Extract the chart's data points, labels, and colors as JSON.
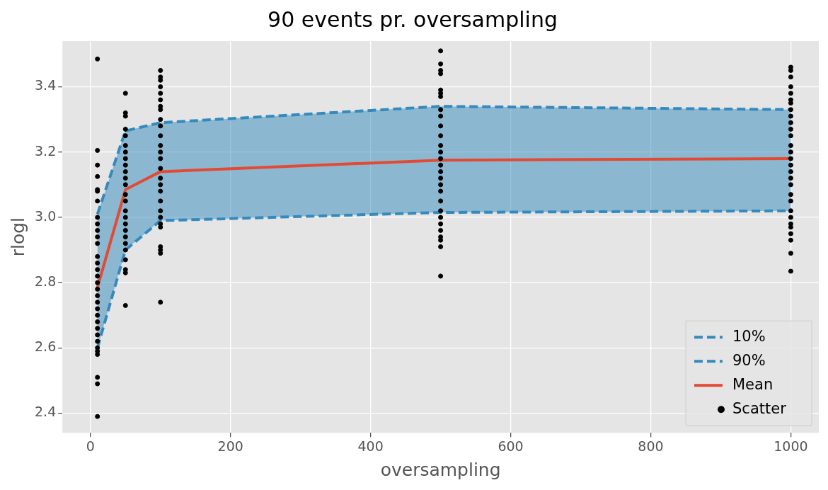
{
  "chart_data": {
    "type": "line",
    "title": "90 events pr. oversampling",
    "xlabel": "oversampling",
    "ylabel": "rlogl",
    "x": [
      10,
      50,
      100,
      500,
      1000
    ],
    "xlim": [
      -40,
      1040
    ],
    "xticks": [
      0,
      200,
      400,
      600,
      800,
      1000
    ],
    "ylim": [
      2.34,
      3.54
    ],
    "yticks": [
      2.4,
      2.6,
      2.8,
      {
        "value": 3,
        "label": "3.0"
      },
      3.2,
      3.4
    ],
    "grid": true,
    "legend": "bottom right",
    "series": [
      {
        "name": "10%",
        "color": "#348abd",
        "line_style": "dashed",
        "marker": "none",
        "values": [
          2.6,
          2.9,
          2.99,
          3.015,
          3.02
        ]
      },
      {
        "name": "90%",
        "color": "#348abd",
        "line_style": "dashed",
        "marker": "none",
        "values": [
          3.01,
          3.265,
          3.29,
          3.34,
          3.33
        ]
      },
      {
        "name": "Mean",
        "color": "#e24a33",
        "line_style": "solid",
        "marker": "none",
        "values": [
          2.785,
          3.085,
          3.14,
          3.175,
          3.18
        ],
        "lower": [
          2.6,
          2.9,
          2.99,
          3.015,
          3.02
        ],
        "upper": [
          3.01,
          3.265,
          3.29,
          3.34,
          3.33
        ]
      },
      {
        "name": "Scatter",
        "type": "scatter",
        "color": "#000000",
        "marker": "circle",
        "x": [
          10,
          10,
          10,
          10,
          10,
          10,
          10,
          10,
          10,
          10,
          10,
          10,
          10,
          10,
          10,
          10,
          10,
          10,
          10,
          10,
          10,
          10,
          10,
          10,
          10,
          10,
          10,
          10,
          10,
          10,
          10,
          10,
          50,
          50,
          50,
          50,
          50,
          50,
          50,
          50,
          50,
          50,
          50,
          50,
          50,
          50,
          50,
          50,
          50,
          50,
          50,
          50,
          50,
          50,
          50,
          50,
          50,
          100,
          100,
          100,
          100,
          100,
          100,
          100,
          100,
          100,
          100,
          100,
          100,
          100,
          100,
          100,
          100,
          100,
          100,
          100,
          100,
          100,
          100,
          100,
          100,
          100,
          100,
          100,
          500,
          500,
          500,
          500,
          500,
          500,
          500,
          500,
          500,
          500,
          500,
          500,
          500,
          500,
          500,
          500,
          500,
          500,
          500,
          500,
          500,
          500,
          500,
          500,
          500,
          500,
          500,
          500,
          1000,
          1000,
          1000,
          1000,
          1000,
          1000,
          1000,
          1000,
          1000,
          1000,
          1000,
          1000,
          1000,
          1000,
          1000,
          1000,
          1000,
          1000,
          1000,
          1000,
          1000,
          1000,
          1000,
          1000,
          1000,
          1000,
          1000,
          1000,
          1000
        ],
        "values": [
          3.485,
          3.205,
          3.16,
          3.125,
          3.085,
          3.08,
          3.05,
          3.0,
          2.98,
          2.96,
          2.94,
          2.92,
          2.88,
          2.86,
          2.84,
          2.82,
          2.8,
          2.78,
          2.76,
          2.74,
          2.72,
          2.7,
          2.68,
          2.66,
          2.64,
          2.62,
          2.6,
          2.59,
          2.58,
          2.51,
          2.49,
          2.39,
          3.38,
          3.32,
          3.31,
          3.27,
          3.25,
          3.22,
          3.2,
          3.18,
          3.16,
          3.14,
          3.12,
          3.1,
          3.07,
          3.05,
          3.02,
          3.0,
          2.98,
          2.96,
          2.94,
          2.92,
          2.9,
          2.87,
          2.84,
          2.83,
          2.73,
          3.45,
          3.43,
          3.42,
          3.4,
          3.38,
          3.36,
          3.34,
          3.33,
          3.3,
          3.28,
          3.25,
          3.22,
          3.2,
          3.18,
          3.15,
          3.12,
          3.1,
          3.08,
          3.05,
          3.02,
          3.0,
          2.98,
          2.97,
          2.91,
          2.9,
          2.89,
          2.74,
          3.51,
          3.47,
          3.45,
          3.44,
          3.39,
          3.38,
          3.37,
          3.33,
          3.31,
          3.28,
          3.25,
          3.22,
          3.2,
          3.18,
          3.16,
          3.14,
          3.12,
          3.1,
          3.08,
          3.05,
          3.02,
          3.0,
          2.98,
          2.96,
          2.94,
          2.93,
          2.91,
          2.82,
          3.46,
          3.45,
          3.43,
          3.4,
          3.38,
          3.36,
          3.35,
          3.33,
          3.31,
          3.29,
          3.27,
          3.25,
          3.22,
          3.2,
          3.18,
          3.16,
          3.14,
          3.12,
          3.1,
          3.07,
          3.05,
          3.02,
          3.0,
          2.98,
          2.97,
          2.95,
          2.93,
          2.89,
          2.835
        ]
      }
    ]
  }
}
